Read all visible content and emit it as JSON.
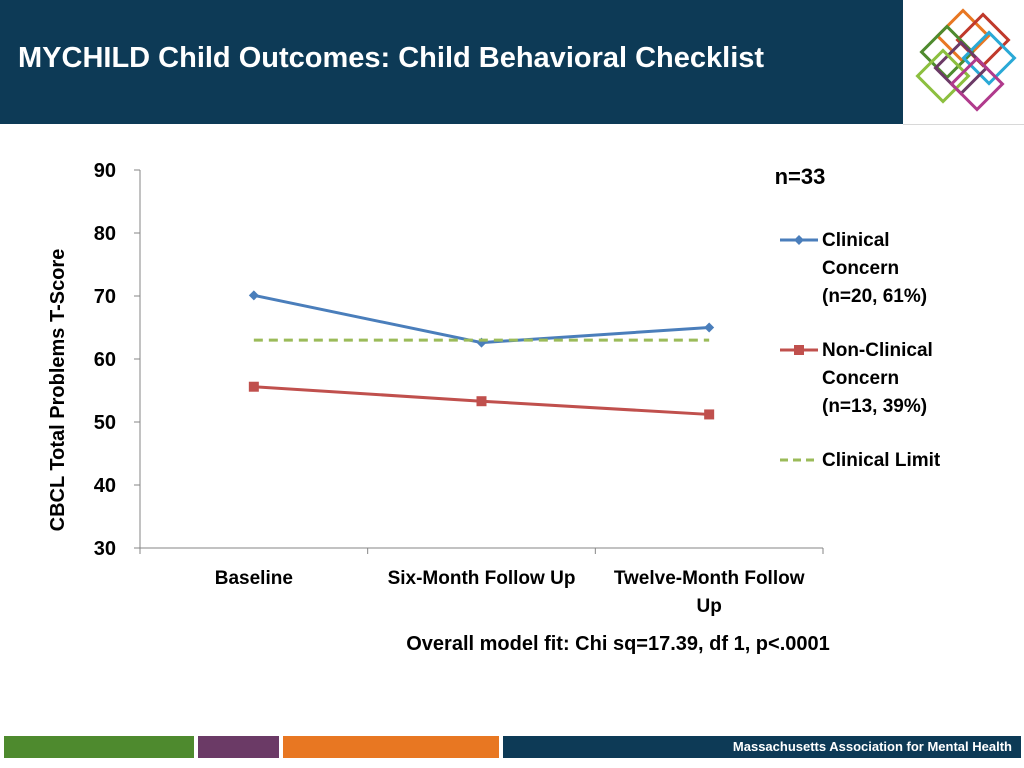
{
  "header": {
    "title": "MYCHILD Child Outcomes: Child Behavioral Checklist",
    "logo_name": "mamh-logo"
  },
  "chart_data": {
    "type": "line",
    "title": "",
    "annotation": "n=33",
    "ylabel": "CBCL Total Problems T-Score",
    "xlabel": "",
    "ylim": [
      30,
      90
    ],
    "yticks": [
      30,
      40,
      50,
      60,
      70,
      80,
      90
    ],
    "categories": [
      "Baseline",
      "Six-Month Follow Up",
      "Twelve-Month Follow Up"
    ],
    "series": [
      {
        "name": "Clinical Concern (n=20, 61%)",
        "legend_lines": [
          "Clinical",
          "Concern",
          "(n=20, 61%)"
        ],
        "color": "#4a7ebb",
        "marker": "diamond",
        "style": "solid",
        "values": [
          70.1,
          62.6,
          65.0
        ]
      },
      {
        "name": "Non-Clinical Concern (n=13, 39%)",
        "legend_lines": [
          "Non-Clinical",
          "Concern",
          "(n=13, 39%)"
        ],
        "color": "#c0504d",
        "marker": "square",
        "style": "solid",
        "values": [
          55.6,
          53.3,
          51.2
        ]
      },
      {
        "name": "Clinical Limit",
        "legend_lines": [
          "Clinical Limit"
        ],
        "color": "#9bbb59",
        "marker": "none",
        "style": "dashed",
        "values": [
          63,
          63,
          63
        ]
      }
    ],
    "legend_position": "right",
    "footnote": "Overall model fit: Chi sq=17.39, df 1, p<.0001"
  },
  "footer": {
    "org": "Massachusetts Association for Mental Health",
    "bar_colors": [
      "#4e8a2e",
      "#6b3a66",
      "#e87722",
      "#0d3a56"
    ]
  }
}
